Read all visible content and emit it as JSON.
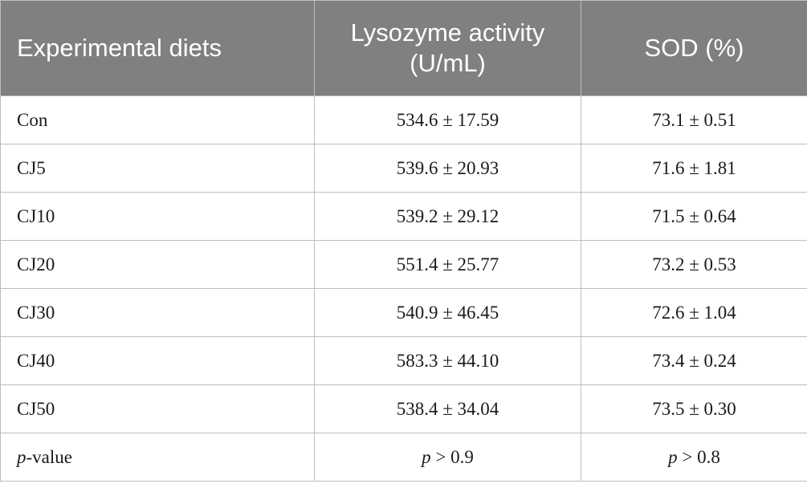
{
  "table": {
    "headers": [
      "Experimental diets",
      "Lysozyme activity (U/mL)",
      "SOD (%)"
    ],
    "rows": [
      {
        "diet": "Con",
        "lysozyme": "534.6 ± 17.59",
        "sod": "73.1 ± 0.51"
      },
      {
        "diet": "CJ5",
        "lysozyme": "539.6 ± 20.93",
        "sod": "71.6 ± 1.81"
      },
      {
        "diet": "CJ10",
        "lysozyme": "539.2 ± 29.12",
        "sod": "71.5 ± 0.64"
      },
      {
        "diet": "CJ20",
        "lysozyme": "551.4 ± 25.77",
        "sod": "73.2 ± 0.53"
      },
      {
        "diet": "CJ30",
        "lysozyme": "540.9 ± 46.45",
        "sod": "72.6 ± 1.04"
      },
      {
        "diet": "CJ40",
        "lysozyme": "583.3 ± 44.10",
        "sod": "73.4 ± 0.24"
      },
      {
        "diet": "CJ50",
        "lysozyme": "538.4 ± 34.04",
        "sod": "73.5 ± 0.30"
      }
    ],
    "pvalue_row": {
      "label_italic": "p",
      "label_rest": "-value",
      "lysozyme_italic": "p",
      "lysozyme_rest": " > 0.9",
      "sod_italic": "p",
      "sod_rest": " > 0.8"
    }
  },
  "colors": {
    "header_bg": "#808080",
    "header_text": "#ffffff",
    "border": "#bdbdbd"
  }
}
